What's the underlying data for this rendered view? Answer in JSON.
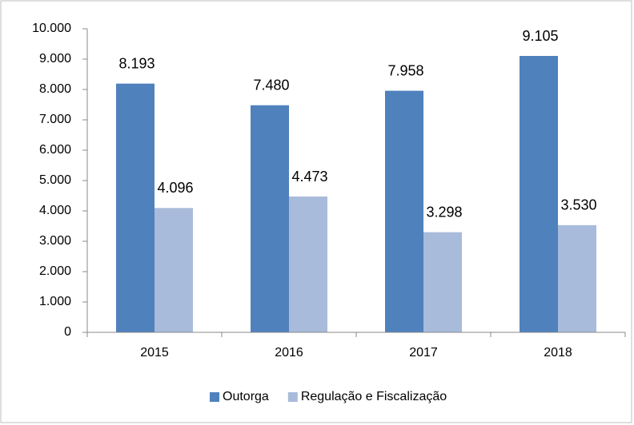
{
  "chart_data": {
    "type": "bar",
    "categories": [
      "2015",
      "2016",
      "2017",
      "2018"
    ],
    "series": [
      {
        "name": "Outorga",
        "color": "#4f81bd",
        "values": [
          8193,
          7480,
          7958,
          9105
        ],
        "value_labels": [
          "8.193",
          "7.480",
          "7.958",
          "9.105"
        ]
      },
      {
        "name": "Regulação e Fiscalização",
        "color": "#a9bbdb",
        "values": [
          4096,
          4473,
          3298,
          3530
        ],
        "value_labels": [
          "4.096",
          "4.473",
          "3.298",
          "3.530"
        ]
      }
    ],
    "ylim": [
      0,
      10000
    ],
    "yticks": [
      0,
      {
        "value": 1000,
        "label": "1.000"
      },
      {
        "value": 2000,
        "label": "2.000"
      },
      {
        "value": 3000,
        "label": "3.000"
      },
      {
        "value": 4000,
        "label": "4.000"
      },
      {
        "value": 5000,
        "label": "5.000"
      },
      {
        "value": 6000,
        "label": "6.000"
      },
      {
        "value": 7000,
        "label": "7.000"
      },
      {
        "value": 8000,
        "label": "8.000"
      },
      {
        "value": 9000,
        "label": "9.000"
      },
      {
        "value": 10000,
        "label": "10.000"
      }
    ],
    "grid": false,
    "legend": "bottom"
  }
}
